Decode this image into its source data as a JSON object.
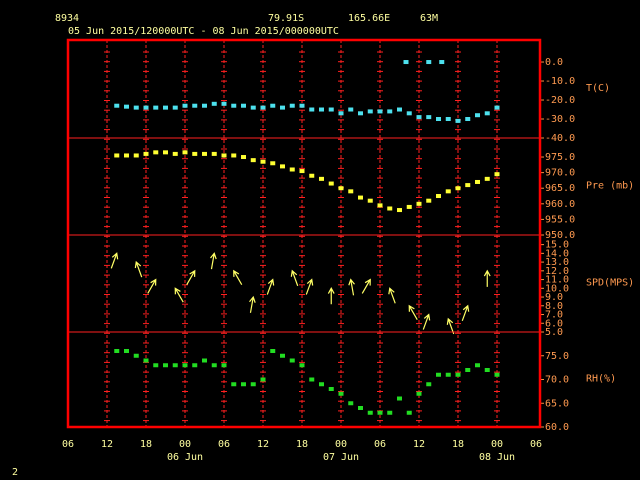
{
  "header": {
    "station": "8934",
    "lat": "79.91S",
    "lon": "165.66E",
    "elev": "63M",
    "period": "05 Jun 2015/120000UTC - 08 Jun 2015/000000UTC"
  },
  "footer": "2",
  "chart_data": {
    "type": "meteogram",
    "xlim": [
      0,
      72
    ],
    "xticks": [
      {
        "value": 0,
        "label": "06"
      },
      {
        "value": 6,
        "label": "12"
      },
      {
        "value": 12,
        "label": "18"
      },
      {
        "value": 18,
        "label": "00"
      },
      {
        "value": 24,
        "label": "06"
      },
      {
        "value": 30,
        "label": "12"
      },
      {
        "value": 36,
        "label": "18"
      },
      {
        "value": 42,
        "label": "00"
      },
      {
        "value": 48,
        "label": "06"
      },
      {
        "value": 54,
        "label": "12"
      },
      {
        "value": 60,
        "label": "18"
      },
      {
        "value": 66,
        "label": "00"
      },
      {
        "value": 72,
        "label": "06"
      }
    ],
    "date_labels": [
      {
        "value": 18,
        "label": "06 Jun"
      },
      {
        "value": 42,
        "label": "07 Jun"
      },
      {
        "value": 66,
        "label": "08 Jun"
      }
    ],
    "x": [
      7.5,
      9,
      10.5,
      12,
      13.5,
      15,
      16.5,
      18,
      19.5,
      21,
      22.5,
      24,
      25.5,
      27,
      28.5,
      30,
      31.5,
      33,
      34.5,
      36,
      37.5,
      39,
      40.5,
      42,
      43.5,
      45,
      46.5,
      48,
      49.5,
      51,
      52.5,
      54,
      55.5,
      57,
      58.5,
      60,
      61.5,
      63,
      64.5,
      66
    ],
    "panels": [
      {
        "type": "scatter",
        "ylabel": "T(C)",
        "ylim": [
          -40,
          11.6
        ],
        "yticks": [
          {
            "value": 0,
            "label": "0.0"
          },
          {
            "value": -10,
            "label": "-10.0"
          },
          {
            "value": -20,
            "label": "-20.0"
          },
          {
            "value": -30,
            "label": "-30.0"
          },
          {
            "value": -40,
            "label": "-40.0"
          }
        ],
        "series": [
          {
            "color": "#4de1ee",
            "values": [
              -23,
              -23.5,
              -24,
              -24,
              -24,
              -24,
              -24,
              -23,
              -23,
              -23,
              -22,
              -22,
              -23,
              -23,
              -24,
              -24,
              -23,
              -24,
              -23,
              -23,
              -25,
              -25,
              -25,
              -27,
              -25,
              -27,
              -26,
              -26,
              -26,
              -25,
              -27,
              -29,
              -29,
              -30,
              -30,
              -31,
              -30,
              -28,
              -27,
              -24
            ]
          },
          {
            "color": "#4de1ee",
            "x": [
              52,
              55.5,
              57.5
            ],
            "values": [
              0,
              0,
              0
            ]
          }
        ]
      },
      {
        "type": "scatter",
        "ylabel": "Pre (mb)",
        "ylim": [
          950,
          981.1
        ],
        "yticks": [
          {
            "value": 975,
            "label": "975.0"
          },
          {
            "value": 970,
            "label": "970.0"
          },
          {
            "value": 965,
            "label": "965.0"
          },
          {
            "value": 960,
            "label": "960.0"
          },
          {
            "value": 955,
            "label": "955.0"
          },
          {
            "value": 950,
            "label": "950.0"
          }
        ],
        "series": [
          {
            "color": "#ffff33",
            "values": [
              975.5,
              975.5,
              975.5,
              976,
              976.5,
              976.5,
              976,
              976.5,
              976,
              976,
              976,
              975.5,
              975.5,
              975,
              974,
              973.5,
              973,
              972,
              971,
              970.5,
              969,
              968,
              966.5,
              965,
              964,
              962,
              961,
              959.5,
              958.5,
              958,
              959,
              960,
              961,
              962.5,
              964,
              965,
              966,
              967,
              968,
              969.5
            ]
          }
        ]
      },
      {
        "type": "wind",
        "ylabel": "SPD(MPS)",
        "ylim": [
          5,
          16.1
        ],
        "yticks": [
          {
            "value": 15,
            "label": "15.0"
          },
          {
            "value": 14,
            "label": "14.0"
          },
          {
            "value": 13,
            "label": "13.0"
          },
          {
            "value": 12,
            "label": "12.0"
          },
          {
            "value": 11,
            "label": "11.0"
          },
          {
            "value": 10,
            "label": "10.0"
          },
          {
            "value": 9,
            "label": "9.0"
          },
          {
            "value": 8,
            "label": "8.0"
          },
          {
            "value": 7,
            "label": "7.0"
          },
          {
            "value": 6,
            "label": "6.0"
          },
          {
            "value": 5,
            "label": "5.0"
          }
        ],
        "color": "#ffff66",
        "x": [
          7.5,
          10.5,
          13.5,
          16.5,
          19.5,
          22.5,
          25.5,
          28.5,
          31.5,
          34.5,
          37.5,
          40.5,
          43.5,
          46.5,
          49.5,
          52.5,
          55.5,
          58.5,
          61.5,
          64.5
        ],
        "values": [
          14,
          13,
          11,
          10,
          12,
          14,
          12,
          9,
          11,
          12,
          11,
          10,
          11,
          11,
          10,
          8,
          7,
          6.5,
          8,
          12
        ],
        "directions": [
          20,
          340,
          30,
          330,
          30,
          10,
          330,
          10,
          20,
          340,
          20,
          0,
          350,
          30,
          340,
          330,
          20,
          340,
          20,
          0
        ]
      },
      {
        "type": "scatter",
        "ylabel": "RH(%)",
        "ylim": [
          60,
          80
        ],
        "yticks": [
          {
            "value": 75,
            "label": "75.0"
          },
          {
            "value": 70,
            "label": "70.0"
          },
          {
            "value": 65,
            "label": "65.0"
          },
          {
            "value": 60,
            "label": "60.0"
          }
        ],
        "series": [
          {
            "color": "#22dd22",
            "values": [
              76,
              76,
              75,
              74,
              73,
              73,
              73,
              73,
              73,
              74,
              73,
              73,
              69,
              69,
              69,
              70,
              76,
              75,
              74,
              73,
              70,
              69,
              68,
              67,
              65,
              64,
              63,
              63,
              63,
              66,
              63,
              67,
              69,
              71,
              71,
              71,
              72,
              73,
              72,
              71
            ]
          }
        ]
      }
    ]
  }
}
